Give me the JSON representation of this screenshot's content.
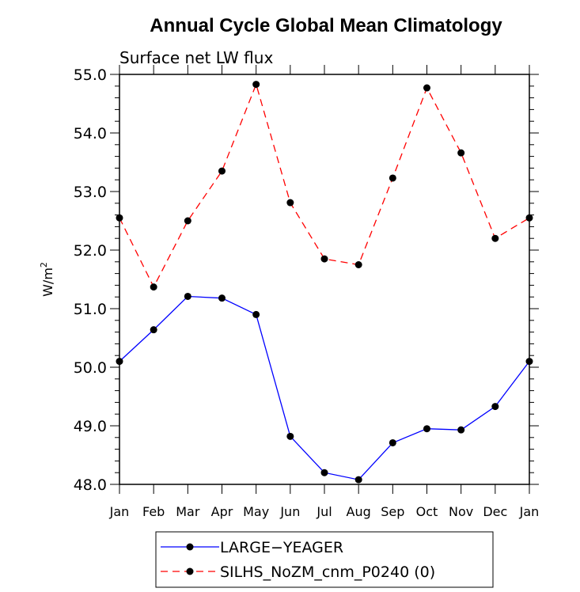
{
  "chart_data": {
    "type": "line",
    "title": "Annual Cycle Global Mean Climatology",
    "subtitle": "Surface net LW flux",
    "ylabel_base": "W/m",
    "ylabel_sup": "2",
    "xlabel": "",
    "ylim": [
      48.0,
      55.0
    ],
    "yticks": [
      "48.0",
      "49.0",
      "50.0",
      "51.0",
      "52.0",
      "53.0",
      "54.0",
      "55.0"
    ],
    "categories": [
      "Jan",
      "Feb",
      "Mar",
      "Apr",
      "May",
      "Jun",
      "Jul",
      "Aug",
      "Sep",
      "Oct",
      "Nov",
      "Dec",
      "Jan"
    ],
    "grid": false,
    "legend_position": "bottom",
    "series": [
      {
        "name": "LARGE−YEAGER",
        "color": "#0000ff",
        "dash": "solid",
        "values": [
          50.1,
          50.64,
          51.21,
          51.18,
          50.9,
          48.82,
          48.2,
          48.08,
          48.71,
          48.95,
          48.93,
          49.33,
          50.1
        ]
      },
      {
        "name": "SILHS_NoZM_cnm_P0240 (0)",
        "color": "#ff0000",
        "dash": "dashed",
        "values": [
          52.55,
          51.37,
          52.5,
          53.35,
          54.83,
          52.81,
          51.85,
          51.75,
          53.23,
          54.77,
          53.66,
          52.2,
          52.55
        ]
      }
    ]
  }
}
